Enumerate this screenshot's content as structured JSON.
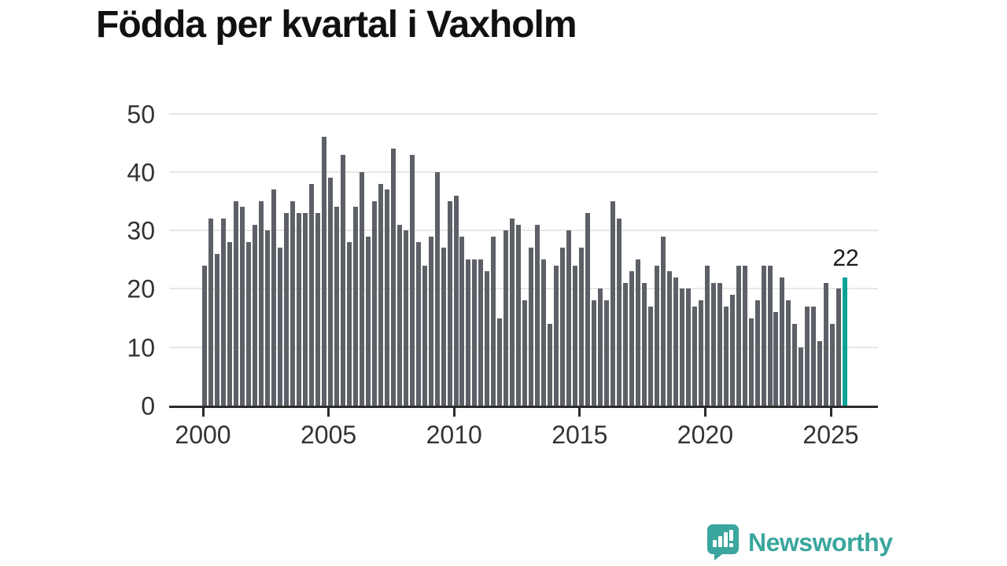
{
  "header": {
    "title": "Födda per kvartal i Vaxholm"
  },
  "chart_data": {
    "type": "bar",
    "title": "Födda per kvartal i Vaxholm",
    "start_period": "2000 Q1",
    "end_period": "2025 Q3",
    "values": [
      24,
      32,
      26,
      32,
      28,
      35,
      34,
      28,
      31,
      35,
      30,
      37,
      27,
      33,
      35,
      33,
      33,
      38,
      33,
      46,
      39,
      34,
      43,
      28,
      34,
      40,
      29,
      35,
      38,
      37,
      44,
      31,
      30,
      43,
      28,
      24,
      29,
      40,
      27,
      35,
      36,
      29,
      25,
      25,
      25,
      23,
      29,
      15,
      30,
      32,
      31,
      18,
      27,
      31,
      25,
      14,
      24,
      27,
      30,
      24,
      27,
      33,
      18,
      20,
      18,
      35,
      32,
      21,
      23,
      25,
      21,
      17,
      24,
      29,
      23,
      22,
      20,
      20,
      17,
      18,
      24,
      21,
      21,
      17,
      19,
      24,
      24,
      15,
      18,
      24,
      24,
      16,
      22,
      18,
      14,
      10,
      17,
      17,
      11,
      21,
      14,
      20,
      22
    ],
    "highlight": {
      "period": "2025 Q3",
      "value": 22,
      "label": "22"
    },
    "x_tick_labels": [
      "2000",
      "2005",
      "2010",
      "2015",
      "2020",
      "2025"
    ],
    "y_tick_labels": [
      "0",
      "10",
      "20",
      "30",
      "40",
      "50"
    ],
    "ylim": [
      0,
      50
    ],
    "grid": true,
    "legend_position": "none",
    "bar_color": "#5d6067",
    "highlight_color": "#0aa396"
  },
  "footer": {
    "brand": "Newsworthy",
    "brand_color": "#3aa69d"
  }
}
